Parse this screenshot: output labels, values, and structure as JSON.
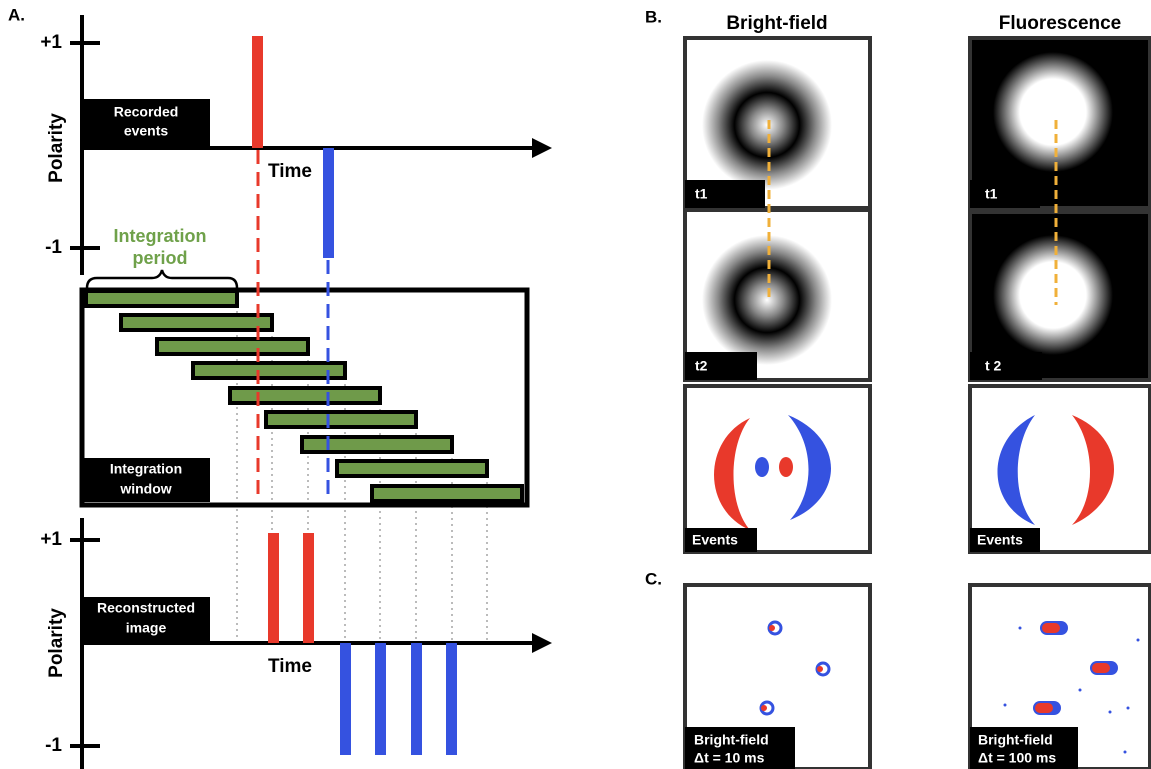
{
  "panel_a": {
    "label": "A.",
    "top": {
      "y_label": "Polarity",
      "tick_high": "+1",
      "tick_low": "-1",
      "box": [
        "Recorded",
        "events"
      ],
      "x_label": "Time"
    },
    "integration": {
      "period": [
        "Integration",
        "period"
      ],
      "window": [
        "Integration",
        "window"
      ]
    },
    "bottom": {
      "y_label": "Polarity",
      "tick_high": "+1",
      "tick_low": "-1",
      "box": [
        "Reconstructed",
        "image"
      ],
      "x_label": "Time"
    }
  },
  "panel_b": {
    "label": "B.",
    "columns": [
      {
        "title": "Bright-field",
        "frames": [
          "t1",
          "t2"
        ],
        "events": "Events"
      },
      {
        "title": "Fluorescence",
        "frames": [
          "t1",
          "t 2"
        ],
        "events": "Events"
      }
    ]
  },
  "panel_c": {
    "label": "C.",
    "captions": [
      [
        "Bright-field",
        "Δt = 10 ms"
      ],
      [
        "Bright-field",
        "Δt = 100 ms"
      ]
    ]
  }
}
